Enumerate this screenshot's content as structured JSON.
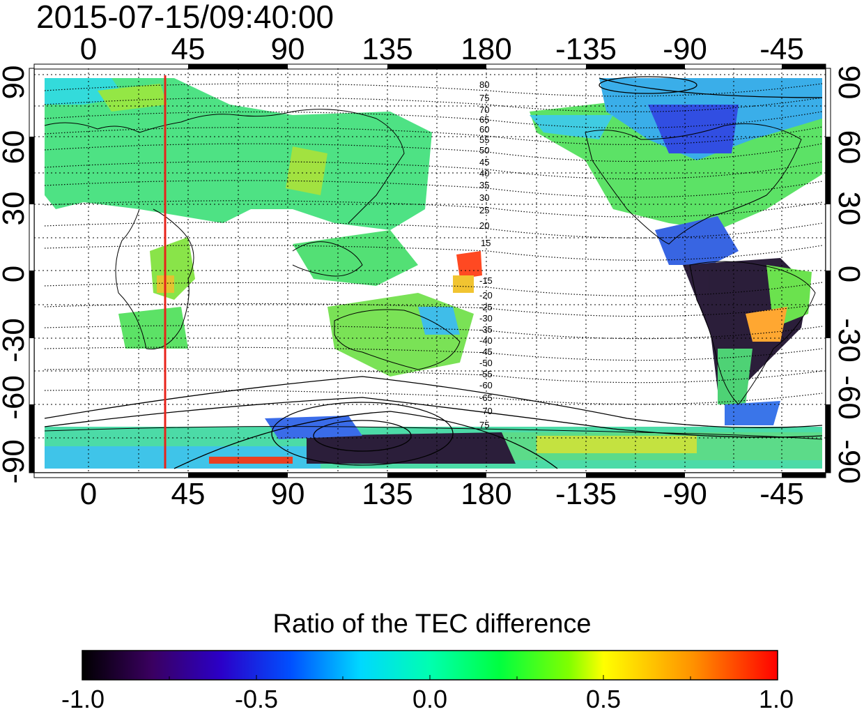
{
  "timestamp": "2015-07-15/09:40:00",
  "map": {
    "lon_ticks": [
      "0",
      "45",
      "90",
      "135",
      "180",
      "-135",
      "-90",
      "-45"
    ],
    "lat_ticks_left": [
      "90",
      "60",
      "30",
      "0",
      "-30",
      "-60",
      "-90"
    ],
    "lat_ticks_right": [
      "90",
      "60",
      "30",
      "0",
      "-30",
      "-60",
      "-90"
    ],
    "lon_range": [
      -10,
      340
    ],
    "lat_range": [
      -90,
      90
    ],
    "grid": true,
    "marker_longitude": 37,
    "marker_color": "#e8231b",
    "mlat_labels_north": [
      "80",
      "75",
      "70",
      "65",
      "60",
      "55",
      "50",
      "45",
      "40",
      "35",
      "30",
      "25",
      "20",
      "15"
    ],
    "mlat_labels_south": [
      "-15",
      "-20",
      "-25",
      "-30",
      "-35",
      "-40",
      "-45",
      "-50",
      "-55",
      "-60",
      "-65",
      "-70",
      "75"
    ]
  },
  "colorbar": {
    "title": "Ratio of the TEC difference",
    "ticks": [
      "-1.0",
      "-0.5",
      "0.0",
      "0.5",
      "1.0"
    ],
    "min": -1.0,
    "max": 1.0,
    "stops": [
      "#000000",
      "#3a0060",
      "#2b00c8",
      "#0050ff",
      "#00d8ff",
      "#00ffb0",
      "#00ff40",
      "#80ff00",
      "#ffff00",
      "#ff9000",
      "#ff0000"
    ]
  }
}
